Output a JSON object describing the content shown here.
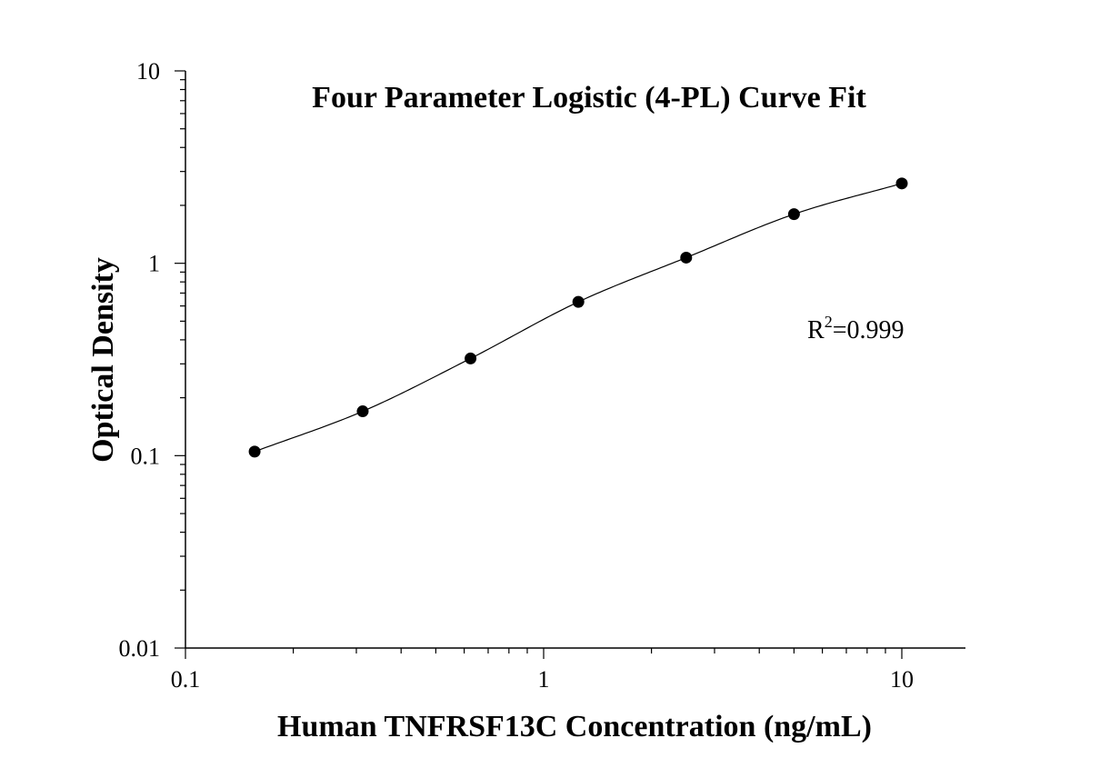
{
  "chart_data": {
    "type": "scatter",
    "title": "Four Parameter Logistic (4-PL) Curve Fit",
    "xlabel": "Human TNFRSF13C Concentration (ng/mL)",
    "ylabel": "Optical Density",
    "xscale": "log",
    "yscale": "log",
    "xlim": [
      0.1,
      15
    ],
    "ylim": [
      0.01,
      10
    ],
    "x_ticks": [
      "0.1",
      "1",
      "10"
    ],
    "y_ticks": [
      "0.01",
      "0.1",
      "1",
      "10"
    ],
    "grid": false,
    "legend": "none",
    "series": [
      {
        "x": [
          0.156,
          0.3125,
          0.625,
          1.25,
          2.5,
          5,
          10
        ],
        "y": [
          0.105,
          0.17,
          0.32,
          0.63,
          1.07,
          1.8,
          2.6
        ]
      }
    ],
    "fit_curve": {
      "model": "4PL",
      "x_range": [
        0.156,
        10
      ]
    },
    "annotation": {
      "r_prefix": "R",
      "r_sup": "2",
      "r_value": "=0.999"
    },
    "colors": {
      "marker": "#000000",
      "line": "#000000"
    }
  }
}
